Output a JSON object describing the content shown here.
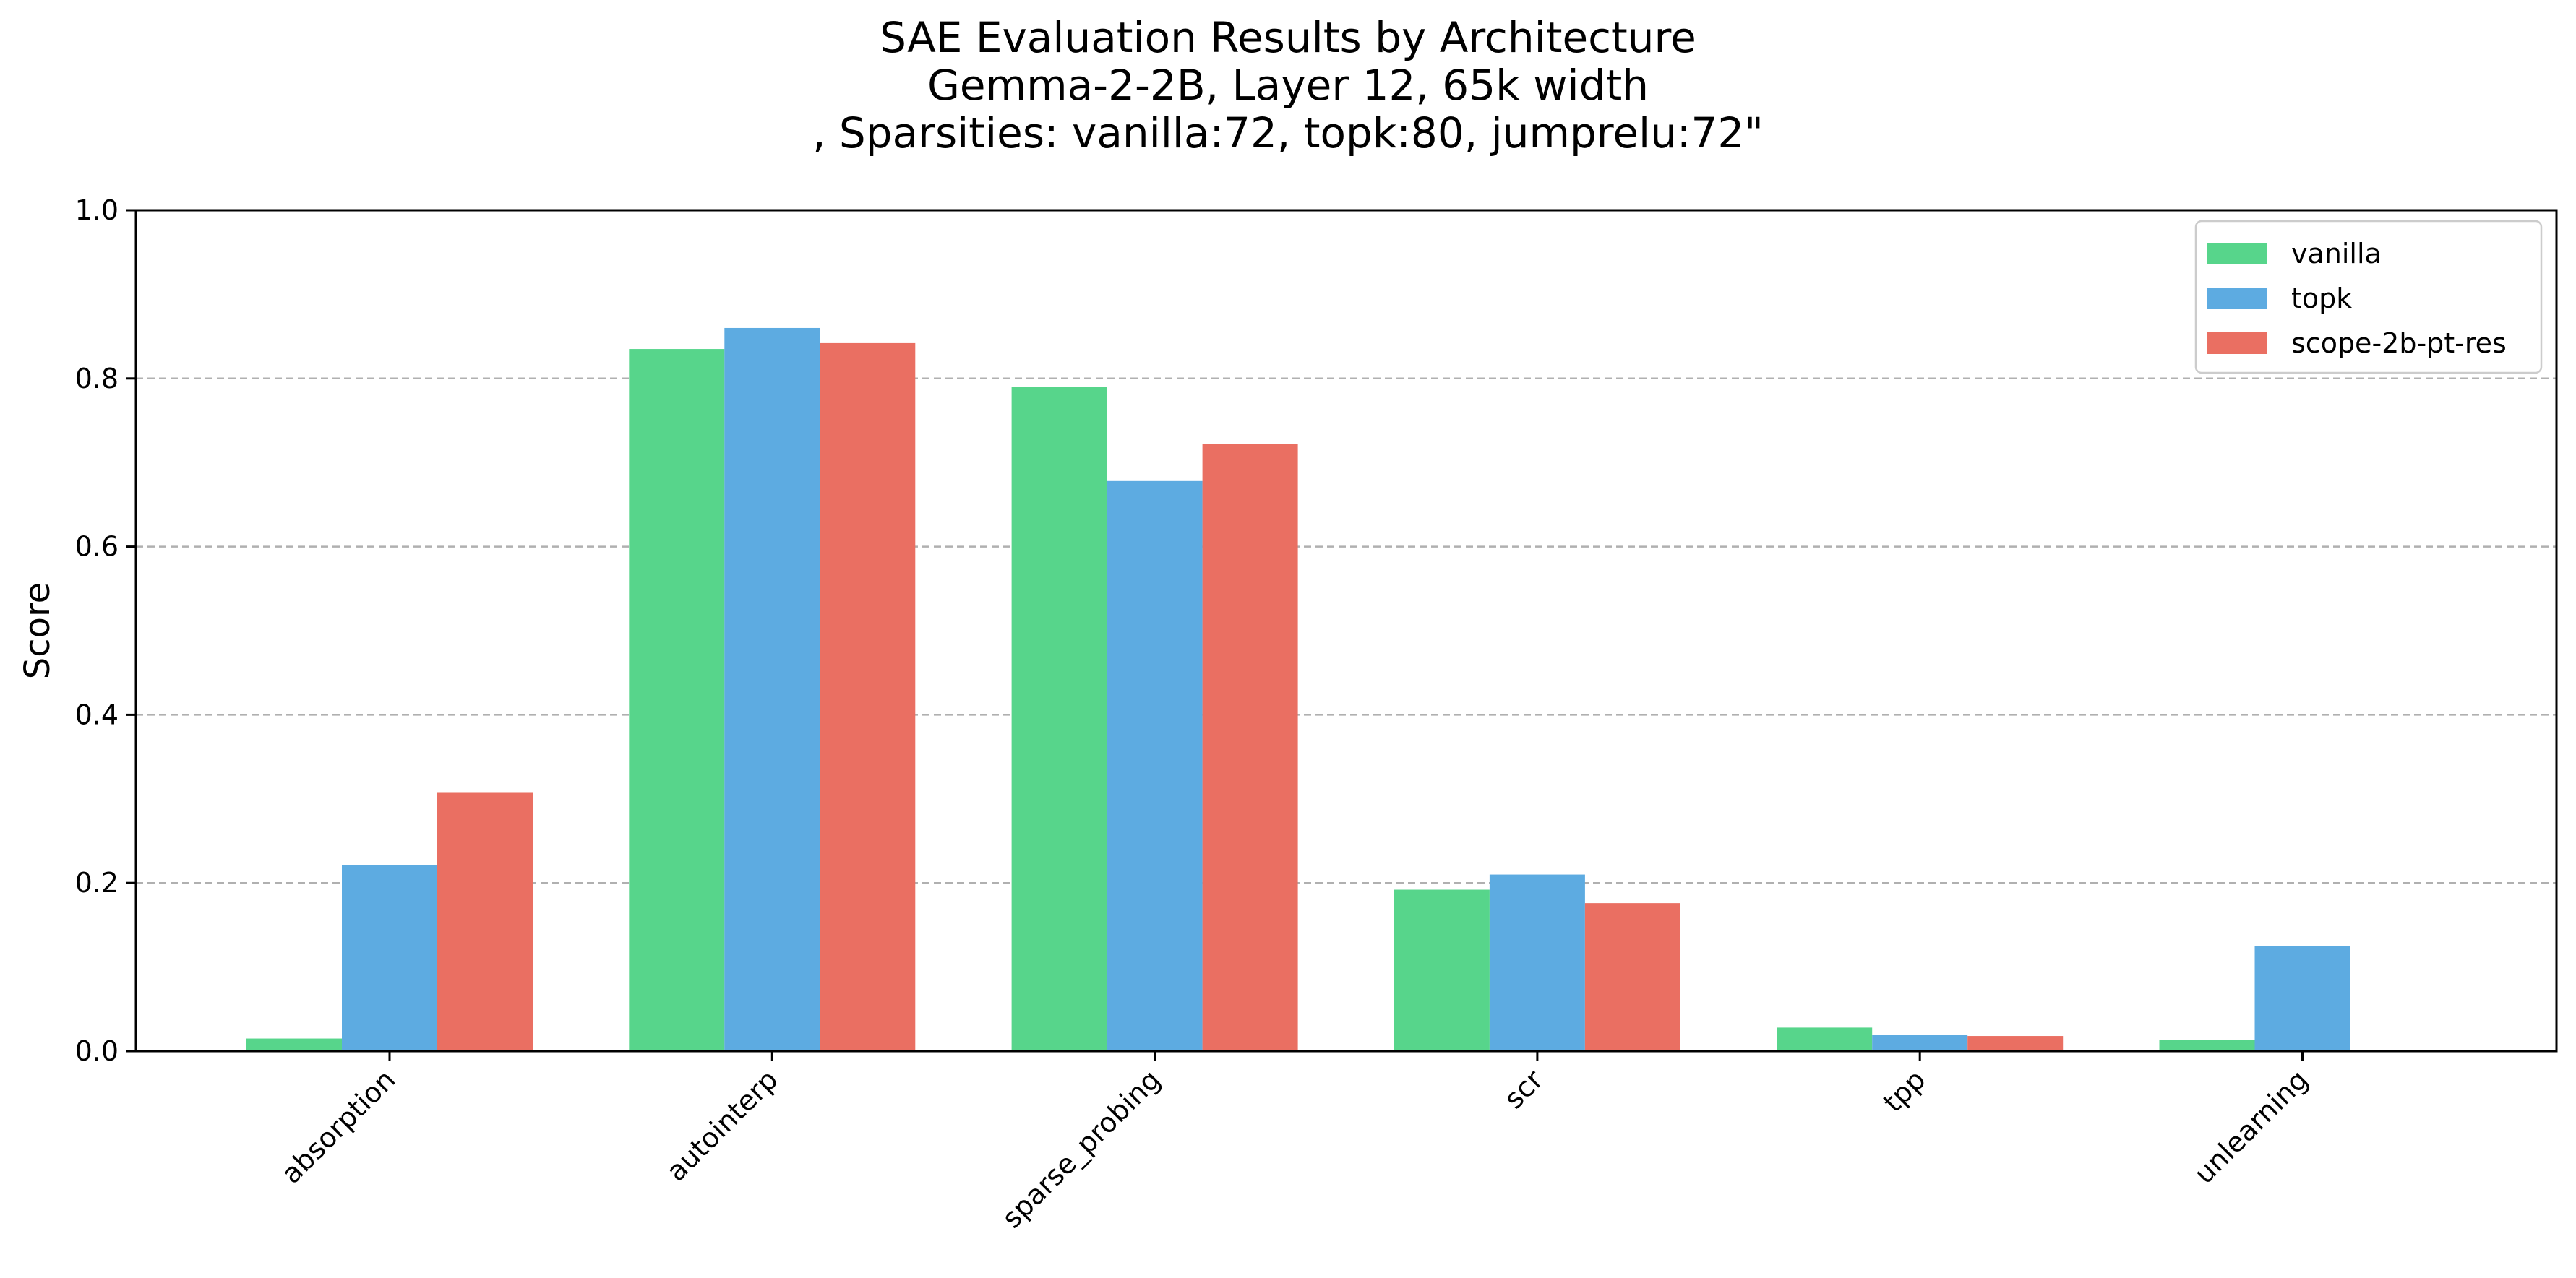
{
  "chart_data": {
    "type": "bar",
    "title_lines": [
      "SAE Evaluation Results by Architecture",
      "Gemma-2-2B, Layer 12, 65k width",
      ", Sparsities: vanilla:72, topk:80, jumprelu:72\""
    ],
    "xlabel": "",
    "ylabel": "Score",
    "ylim": [
      0,
      1.0
    ],
    "yticks": [
      "0.0",
      "0.2",
      "0.4",
      "0.6",
      "0.8",
      "1.0"
    ],
    "grid": "y-dashed",
    "legend_position": "top-right",
    "categories": [
      "absorption",
      "autointerp",
      "sparse_probing",
      "scr",
      "tpp",
      "unlearning"
    ],
    "series": [
      {
        "name": "vanilla",
        "color": "#57d58b",
        "values": [
          0.015,
          0.835,
          0.79,
          0.192,
          0.028,
          0.013
        ]
      },
      {
        "name": "topk",
        "color": "#5dabe1",
        "values": [
          0.221,
          0.86,
          0.678,
          0.21,
          0.019,
          0.125
        ]
      },
      {
        "name": "scope-2b-pt-res",
        "color": "#ea6f62",
        "values": [
          0.308,
          0.842,
          0.722,
          0.176,
          0.018,
          0.0
        ]
      }
    ]
  }
}
